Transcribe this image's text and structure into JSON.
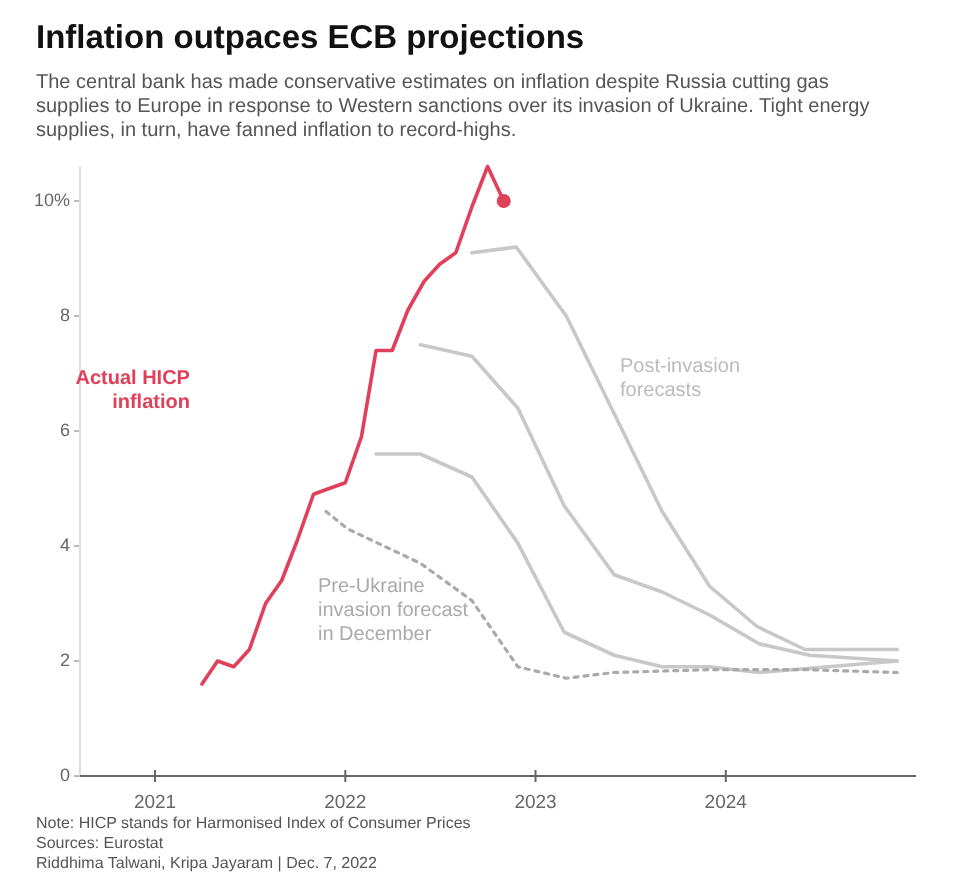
{
  "chart_data": {
    "type": "line",
    "title": "Inflation outpaces ECB projections",
    "subtitle": "The central bank has made conservative estimates on inflation despite Russia cutting gas supplies to Europe in response to Western sanctions over its invasion of Ukraine. Tight energy supplies, in turn, have fanned inflation to record-highs.",
    "xlim": [
      "2020-08-10",
      "2024-12-31"
    ],
    "xticks": [
      "2021",
      "2022",
      "2023",
      "2024"
    ],
    "ylim": [
      0,
      10.6
    ],
    "yticks": [
      0,
      2,
      4,
      6,
      {
        "value": 8,
        "label": "8"
      },
      {
        "value": 10,
        "label": "10%"
      }
    ],
    "marker": "none",
    "series": [
      {
        "name": "Actual HICP inflation",
        "color": "#e0405a",
        "x": [
          "2021-04",
          "2021-05",
          "2021-06",
          "2021-07",
          "2021-08",
          "2021-09",
          "2021-10",
          "2021-11",
          "2021-12",
          "2022-01",
          "2022-02",
          "2022-03",
          "2022-04",
          "2022-05",
          "2022-06",
          "2022-07",
          "2022-08",
          "2022-09",
          "2022-10",
          "2022-11"
        ],
        "values": [
          1.6,
          2.0,
          1.9,
          2.2,
          3.0,
          3.4,
          4.1,
          4.9,
          5.0,
          5.1,
          5.9,
          7.4,
          7.4,
          8.1,
          8.6,
          8.9,
          9.1,
          9.9,
          10.6,
          10.0
        ]
      },
      {
        "type": "scatter",
        "marker": "circle",
        "color": "#e0405a",
        "x": [
          "2022-11"
        ],
        "values": [
          10.0
        ]
      },
      {
        "color": "#c8c8c8",
        "x": [
          "2022-03",
          "2022-05-25",
          "2022-09",
          "2022-11-28",
          "2023-02-25",
          "2023-06",
          "2023-09",
          "2023-12",
          "2024-03-05",
          "2024-11-25"
        ],
        "values": [
          5.6,
          5.6,
          5.2,
          4.05,
          2.5,
          2.1,
          1.9,
          1.9,
          1.8,
          2.0
        ]
      },
      {
        "color": "#c8c8c8",
        "x": [
          "2022-05-25",
          "2022-09",
          "2022-11-28",
          "2023-02-25",
          "2023-06",
          "2023-09-01",
          "2023-12",
          "2024-03-05",
          "2024-06-10",
          "2024-11-25"
        ],
        "values": [
          7.5,
          7.3,
          6.4,
          4.7,
          3.5,
          3.2,
          2.8,
          2.3,
          2.1,
          2.0
        ]
      },
      {
        "color": "#c8c8c8",
        "x": [
          "2022-09",
          "2022-11-25",
          "2023-03",
          "2023-06",
          "2023-09",
          "2023-12",
          "2024-03",
          "2024-06",
          "2024-11-25"
        ],
        "values": [
          9.1,
          9.2,
          8.0,
          6.3,
          4.6,
          3.3,
          2.6,
          2.2,
          2.2
        ]
      },
      {
        "name": "Pre-Ukraine invasion forecast in December",
        "color": "#aaaaaa",
        "line_style": "dotted",
        "x": [
          "2021-11-25",
          "2022-01-05",
          "2022-05-25",
          "2022-09",
          "2022-11-28",
          "2023-03",
          "2023-06",
          "2023-12",
          "2024-06",
          "2024-11-25"
        ],
        "values": [
          4.6,
          4.3,
          3.7,
          3.05,
          1.9,
          1.7,
          1.8,
          1.85,
          1.85,
          1.8
        ]
      }
    ],
    "annotations": [
      "Post-invasion forecasts",
      "Note: HICP stands for Harmonised Index of Consumer Prices",
      "Sources: Eurostat",
      "Riddhima Talwani, Kripa Jayaram | Dec. 7, 2022"
    ]
  }
}
